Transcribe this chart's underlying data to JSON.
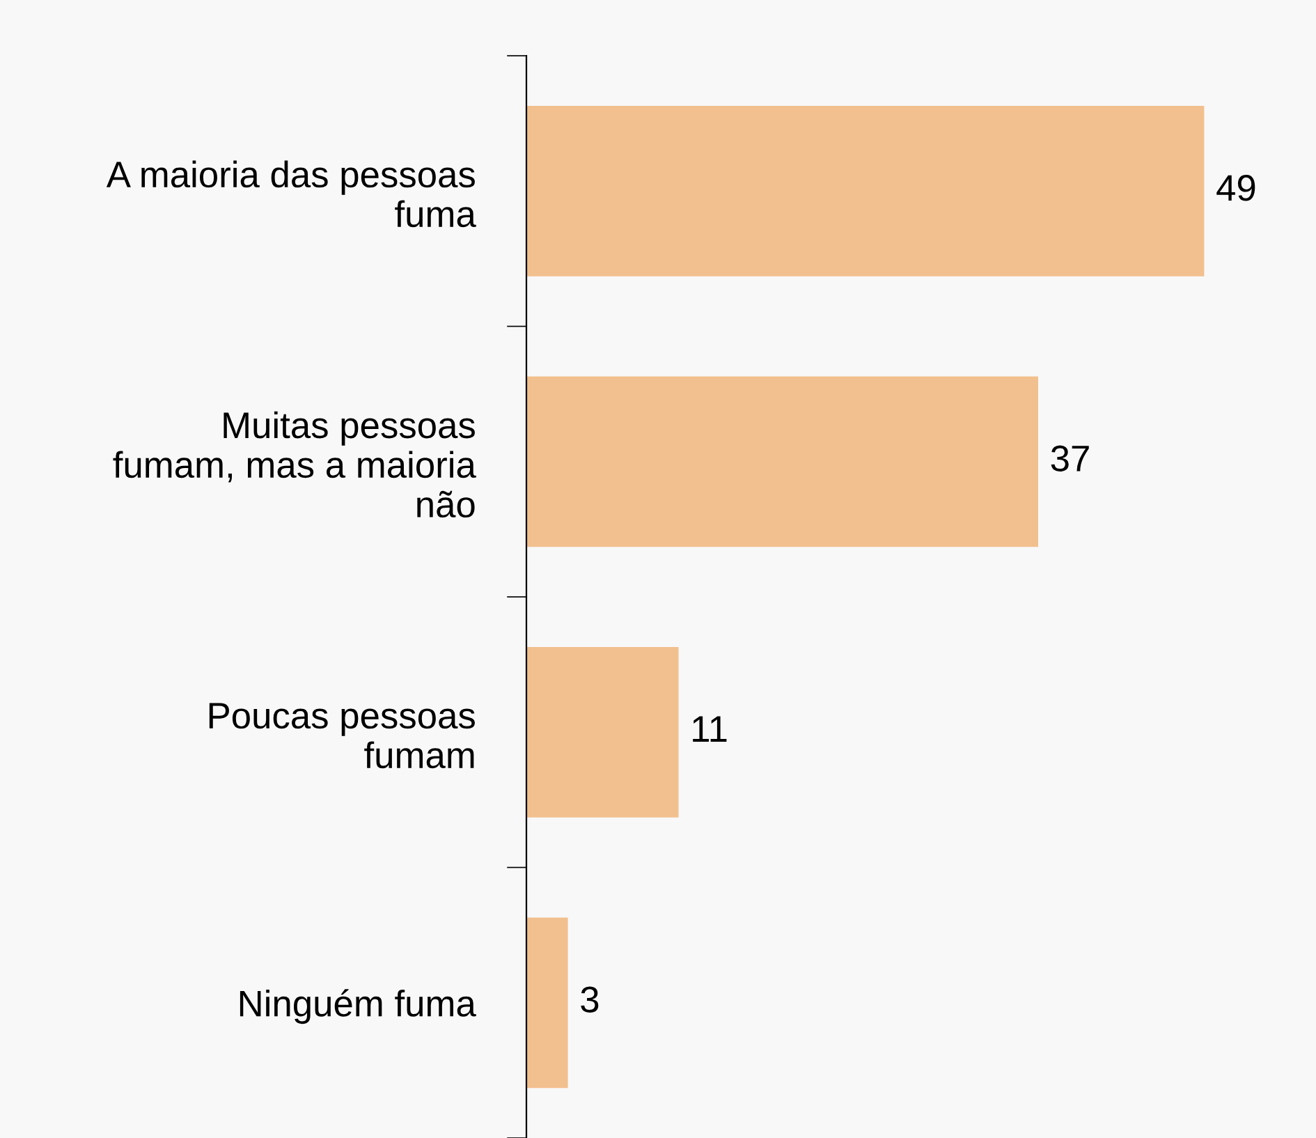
{
  "chart_data": {
    "type": "bar",
    "orientation": "horizontal",
    "categories": [
      "A maioria das pessoas\nfuma",
      "Muitas pessoas\nfumam, mas a maioria\nnão",
      "Poucas pessoas\nfumam",
      "Ninguém fuma"
    ],
    "values": [
      49,
      37,
      11,
      3
    ],
    "color": "#f2c08e",
    "data_labels": true,
    "tick_labels": "y",
    "grid": false,
    "legend": false
  }
}
